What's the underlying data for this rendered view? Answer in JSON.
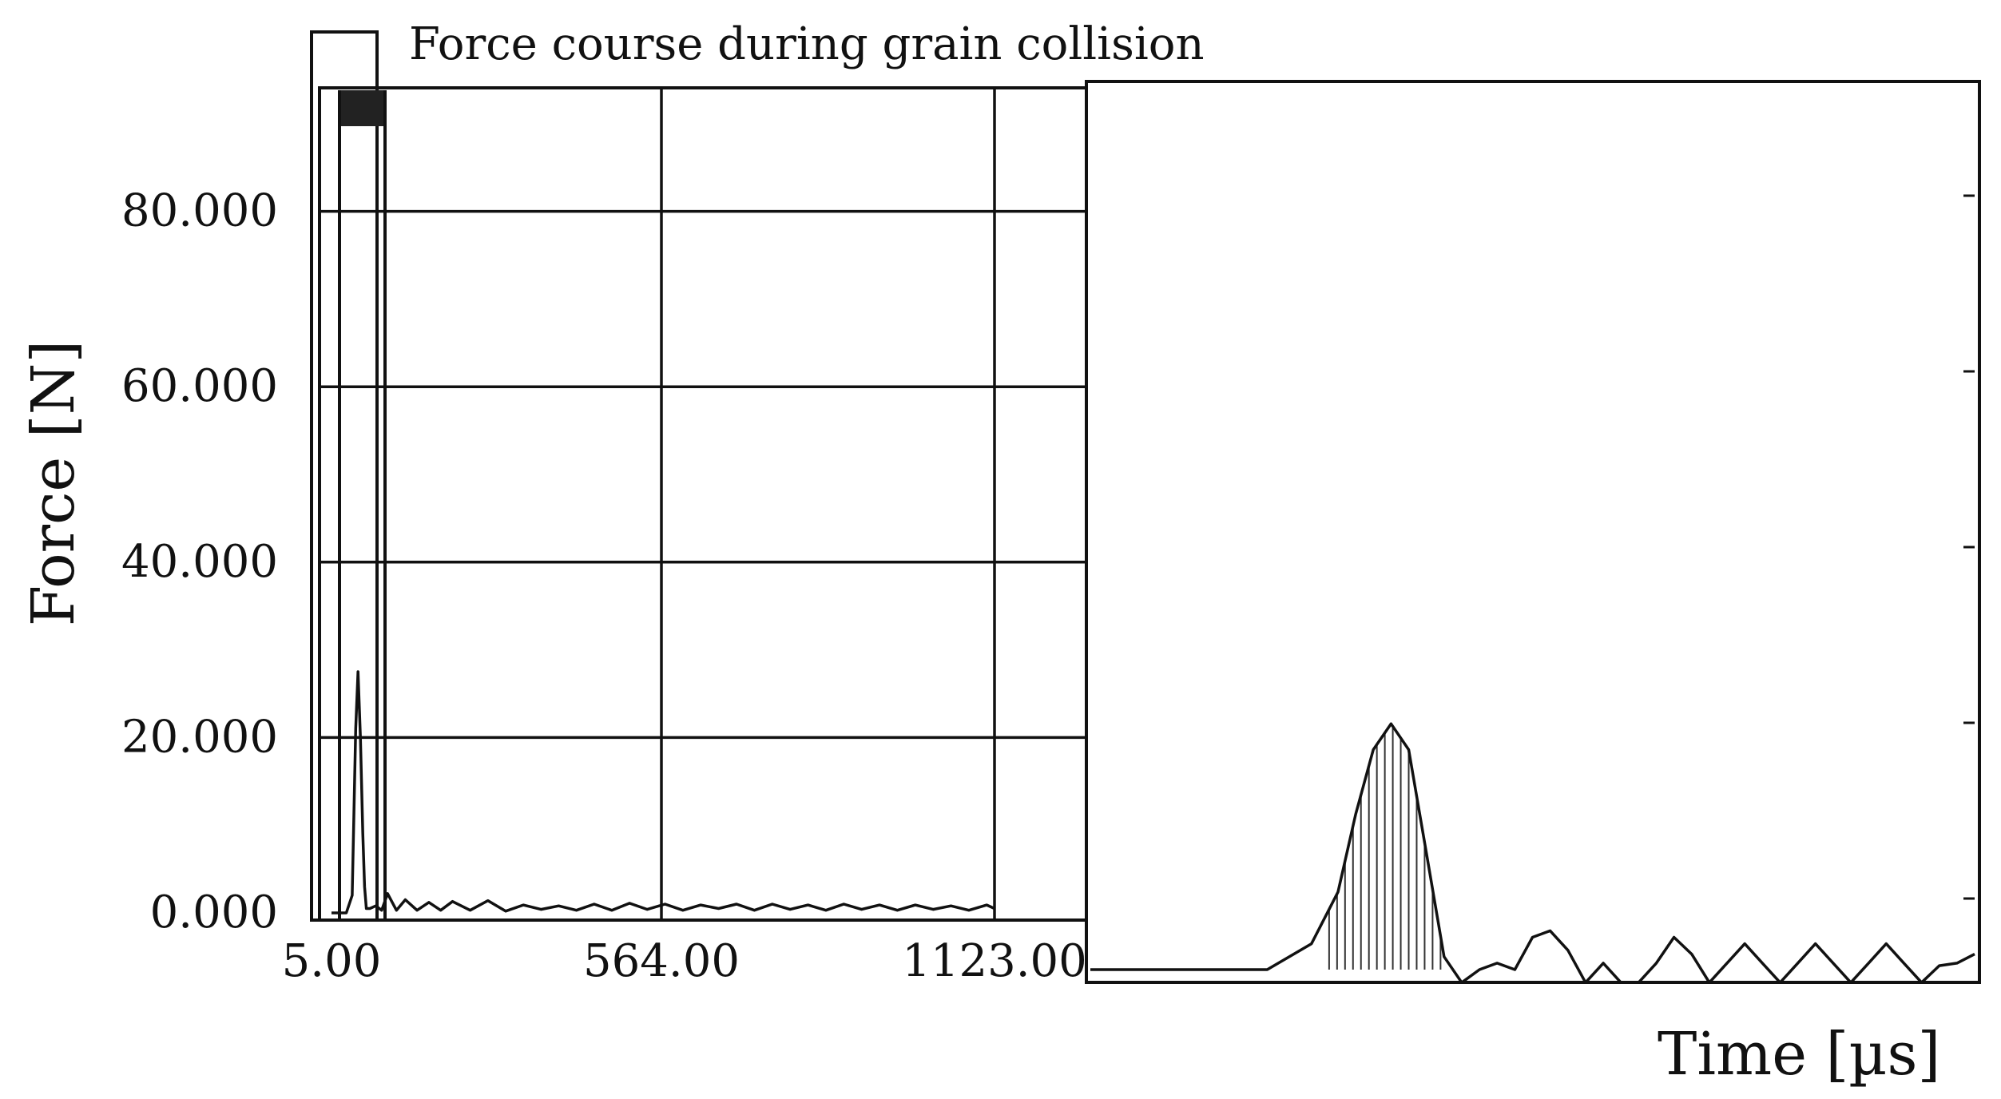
{
  "chart_data": [
    {
      "type": "line",
      "title": "Force course during grain collision",
      "ylabel": "Force [N]",
      "xlabel": "",
      "x_ticks": [
        "5.00",
        "564.00",
        "1123.00"
      ],
      "x_tick_values": [
        5,
        564,
        1123
      ],
      "y_ticks": [
        "0.000",
        "20.000",
        "40.000",
        "60.000",
        "80.000"
      ],
      "y_tick_values": [
        0,
        20,
        40,
        60,
        80
      ],
      "xlim": [
        5,
        1123
      ],
      "ylim": [
        0,
        95
      ],
      "grid": true,
      "zoom_window": {
        "x_range": [
          15,
          55
        ],
        "y_range": [
          90,
          95
        ]
      },
      "series": [
        {
          "values_x": [
            5,
            30,
            40,
            46,
            50,
            54,
            58,
            61,
            64,
            70,
            80,
            90,
            100,
            115,
            130,
            150,
            170,
            190,
            210,
            240,
            270,
            300,
            330,
            360,
            390,
            420,
            450,
            480,
            510,
            540,
            570,
            600,
            630,
            660,
            690,
            720,
            750,
            780,
            810,
            840,
            870,
            900,
            930,
            960,
            990,
            1020,
            1050,
            1080,
            1110,
            1123
          ],
          "values_y": [
            0,
            0,
            2,
            21,
            27.5,
            20,
            9,
            3,
            0.5,
            0.5,
            0.8,
            0.3,
            2.2,
            0.3,
            1.5,
            0.3,
            1.2,
            0.3,
            1.3,
            0.3,
            1.4,
            0.2,
            0.9,
            0.4,
            0.8,
            0.3,
            1.0,
            0.3,
            1.1,
            0.4,
            1.0,
            0.3,
            0.9,
            0.5,
            1.0,
            0.3,
            1.0,
            0.4,
            0.9,
            0.3,
            1.0,
            0.4,
            0.9,
            0.3,
            0.9,
            0.4,
            0.8,
            0.3,
            0.9,
            0.5
          ]
        }
      ]
    },
    {
      "type": "line",
      "title": "",
      "xlabel": "Time  [µs]",
      "ylabel": "",
      "description_scale": "zoomed view of collision impulse",
      "series": [
        {
          "values_x": [
            0,
            10,
            20,
            25,
            28,
            30,
            32,
            34,
            36,
            38,
            40,
            42,
            44,
            46,
            48,
            50,
            52,
            54,
            56,
            58,
            60,
            62,
            64,
            66,
            68,
            70,
            72,
            74,
            76,
            78,
            80,
            82,
            84,
            86,
            88,
            90,
            92,
            94,
            96,
            98,
            100
          ],
          "values_y": [
            0,
            0,
            0,
            2,
            6,
            12,
            17,
            19,
            17,
            9,
            1,
            -1,
            0,
            0.5,
            0,
            2.5,
            3,
            1.5,
            -1,
            0.5,
            -1,
            -1,
            0.5,
            2.5,
            1.2,
            -1,
            0.5,
            2,
            0.5,
            -1,
            0.5,
            2,
            0.5,
            -1,
            0.5,
            2,
            0.5,
            -1,
            0.3,
            0.5,
            1.2
          ]
        }
      ]
    }
  ]
}
